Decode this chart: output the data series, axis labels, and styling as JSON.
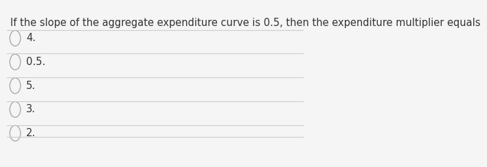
{
  "question": "If the slope of the aggregate expenditure curve is 0.5, then the expenditure multiplier equals",
  "options": [
    "4.",
    "0.5.",
    "5.",
    "3.",
    "2."
  ],
  "bg_color": "#f5f5f5",
  "text_color": "#333333",
  "line_color": "#cccccc",
  "question_fontsize": 10.5,
  "option_fontsize": 10.5,
  "circle_color": "#aaaaaa"
}
